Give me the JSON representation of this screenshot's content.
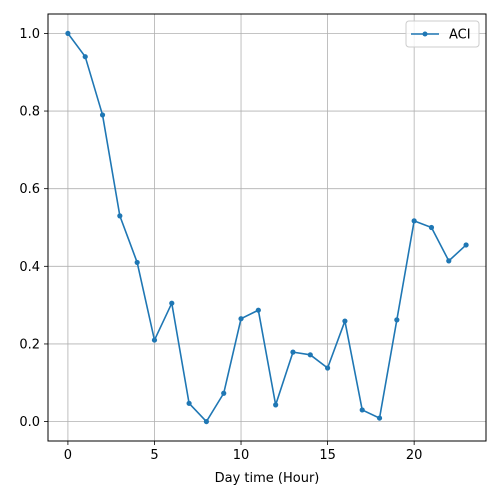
{
  "chart_data": {
    "type": "line",
    "xlabel": "Day time (Hour)",
    "ylabel": "",
    "xlim": [
      -1.15,
      24.15
    ],
    "ylim": [
      -0.05,
      1.05
    ],
    "xticks": [
      0,
      5,
      10,
      15,
      20
    ],
    "yticks": [
      0.0,
      0.2,
      0.4,
      0.6,
      0.8,
      1.0
    ],
    "xtick_labels": [
      "0",
      "5",
      "10",
      "15",
      "20"
    ],
    "ytick_labels": [
      "0.0",
      "0.2",
      "0.4",
      "0.6",
      "0.8",
      "1.0"
    ],
    "grid": true,
    "legend_position": "top-right",
    "line_color": "#1f77b4",
    "series": [
      {
        "name": "ACI",
        "x": [
          0,
          1,
          2,
          3,
          4,
          5,
          6,
          7,
          8,
          9,
          10,
          11,
          12,
          13,
          14,
          15,
          16,
          17,
          18,
          19,
          20,
          21,
          22,
          23
        ],
        "y": [
          1.0,
          0.94,
          0.79,
          0.53,
          0.41,
          0.21,
          0.305,
          0.047,
          0.0,
          0.073,
          0.265,
          0.287,
          0.043,
          0.179,
          0.172,
          0.138,
          0.259,
          0.03,
          0.009,
          0.262,
          0.517,
          0.5,
          0.414,
          0.455
        ]
      }
    ]
  }
}
